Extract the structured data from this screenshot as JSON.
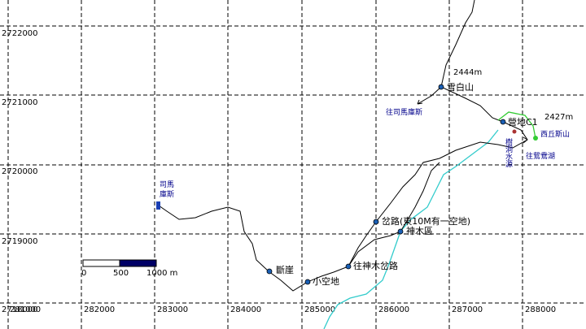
{
  "grid": {
    "y_labels": [
      2722000,
      2721000,
      2720000,
      2719000,
      2718000
    ],
    "x_labels": [
      281000,
      282000,
      283000,
      284000,
      285000,
      286000,
      287000,
      288000
    ]
  },
  "places": {
    "peak1_elev": "2444m",
    "peak1": "雪白山",
    "to_smangus1": "往司馬庫斯",
    "camp": "營地C1",
    "peak2_elev": "2427m",
    "peak2": "西丘斯山",
    "water": "樹洞水源",
    "to_lake": "往鴛鴦湖",
    "smangus": [
      "司馬",
      "庫斯"
    ],
    "fork": "岔路(東10M有一空地)",
    "giant_tree": "神木區",
    "cliff": "斷崖",
    "clearing": "小空地",
    "to_giant_tree": "往神木岔路"
  },
  "scale": {
    "labels": [
      "0",
      "500",
      "1000 m"
    ]
  }
}
